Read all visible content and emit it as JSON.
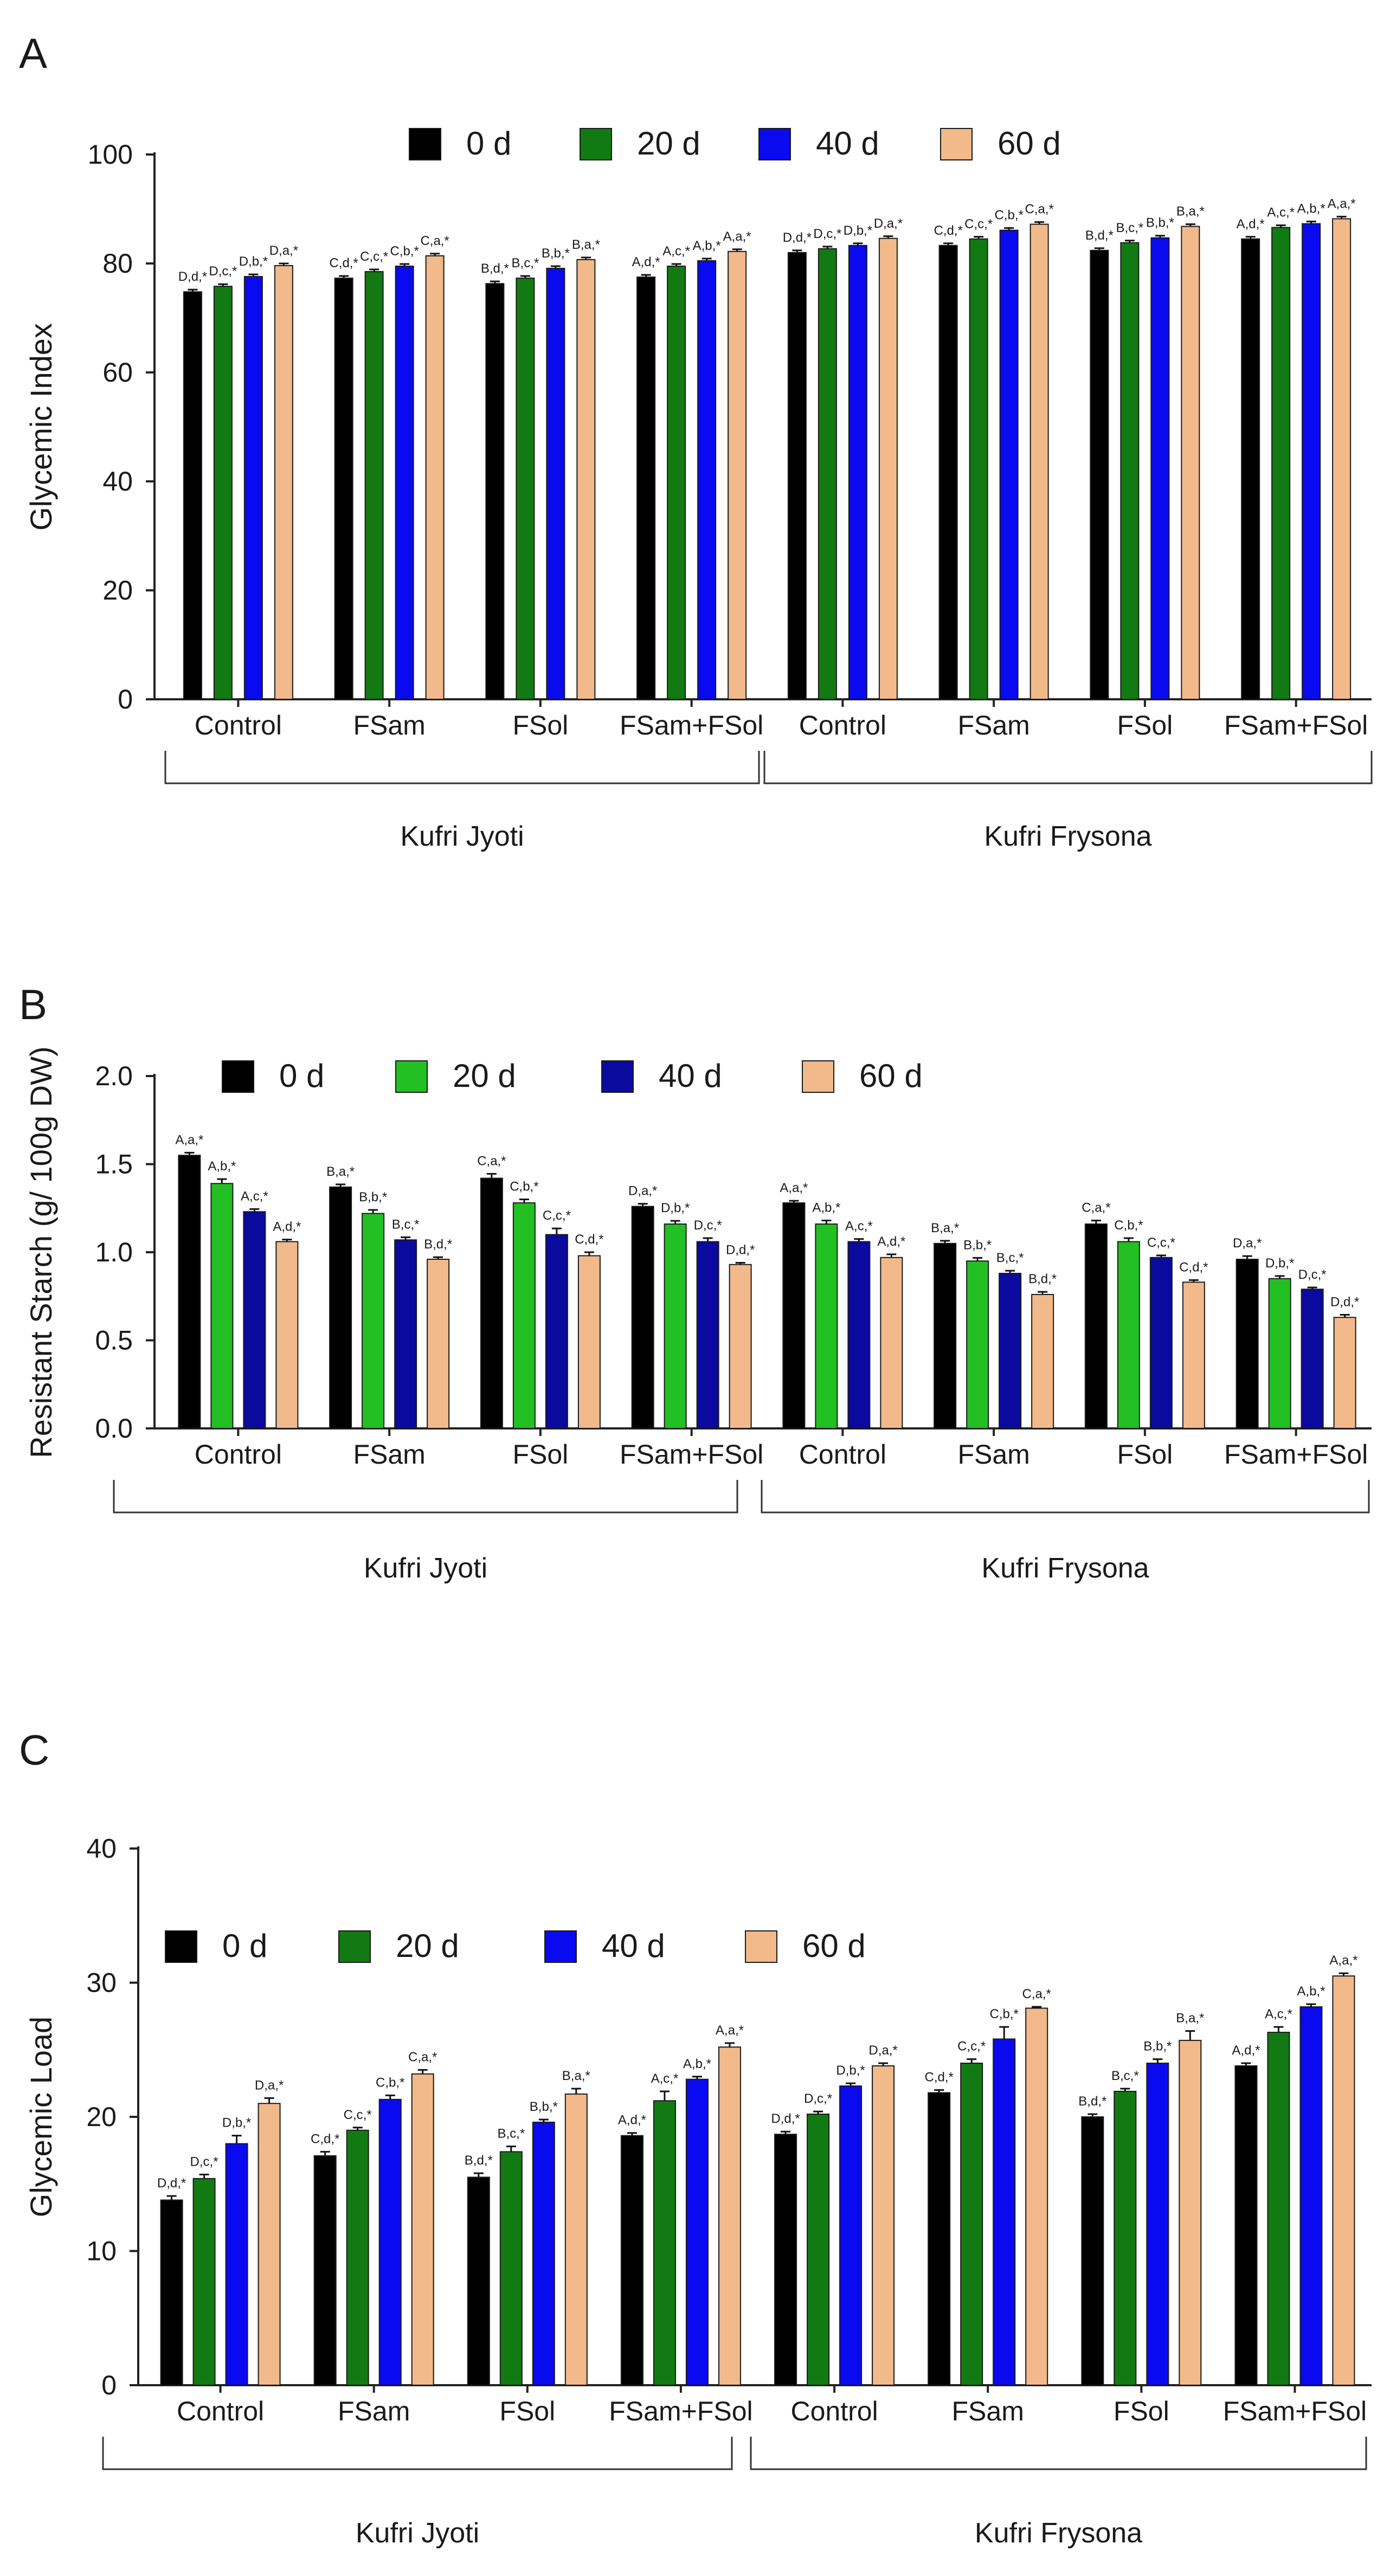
{
  "chart_data": [
    {
      "type": "bar",
      "panel_label": "A",
      "ylabel": "Glycemic Index",
      "xlabel": "",
      "ylim": [
        0,
        100
      ],
      "yticks": [
        0,
        20,
        40,
        60,
        80,
        100
      ],
      "categories": [
        "Control",
        "FSam",
        "FSol",
        "FSam+FSol",
        "Control",
        "FSam",
        "FSol",
        "FSam+FSol"
      ],
      "groups": [
        "Kufri Jyoti",
        "Kufri Frysona"
      ],
      "legend_position": "top",
      "series": [
        {
          "name": "0 d",
          "color": "#000000",
          "values": [
            74.8,
            77.3,
            76.3,
            77.5,
            82.0,
            83.3,
            82.4,
            84.5
          ],
          "errors": [
            0.4,
            0.4,
            0.4,
            0.4,
            0.4,
            0.4,
            0.4,
            0.4
          ],
          "labels": [
            "D,d,*",
            "C,d,*",
            "B,d,*",
            "A,d,*",
            "D,d,*",
            "C,d,*",
            "B,d,*",
            "A,d,*"
          ]
        },
        {
          "name": "20 d",
          "color": "#127a12",
          "values": [
            75.8,
            78.5,
            77.3,
            79.5,
            82.7,
            84.5,
            83.8,
            86.6
          ],
          "errors": [
            0.4,
            0.4,
            0.4,
            0.4,
            0.4,
            0.4,
            0.4,
            0.4
          ],
          "labels": [
            "D,c,*",
            "C,c,*",
            "B,c,*",
            "A,c,*",
            "D,c,*",
            "C,c,*",
            "B,c,*",
            "A,c,*"
          ]
        },
        {
          "name": "40 d",
          "color": "#0a0af0",
          "values": [
            77.6,
            79.5,
            79.1,
            80.5,
            83.3,
            86.1,
            84.7,
            87.3
          ],
          "errors": [
            0.4,
            0.4,
            0.4,
            0.4,
            0.4,
            0.4,
            0.4,
            0.4
          ],
          "labels": [
            "D,b,*",
            "C,b,*",
            "B,b,*",
            "A,b,*",
            "D,b,*",
            "C,b,*",
            "B,b,*",
            "A,b,*"
          ]
        },
        {
          "name": "60 d",
          "color": "#f2b98a",
          "values": [
            79.6,
            81.4,
            80.7,
            82.2,
            84.6,
            87.2,
            86.8,
            88.2
          ],
          "errors": [
            0.4,
            0.4,
            0.4,
            0.4,
            0.4,
            0.4,
            0.4,
            0.4
          ],
          "labels": [
            "D,a,*",
            "C,a,*",
            "B,a,*",
            "A,a,*",
            "D,a,*",
            "C,a,*",
            "B,a,*",
            "A,a,*"
          ]
        }
      ]
    },
    {
      "type": "bar",
      "panel_label": "B",
      "ylabel": "Resistant Starch (g/ 100g  DW)",
      "xlabel": "",
      "ylim": [
        0,
        2.0
      ],
      "yticks": [
        "0.0",
        "0.5",
        "1.0",
        "1.5",
        "2.0"
      ],
      "categories": [
        "Control",
        "FSam",
        "FSol",
        "FSam+FSol",
        "Control",
        "FSam",
        "FSol",
        "FSam+FSol"
      ],
      "groups": [
        "Kufri Jyoti",
        "Kufri Frysona"
      ],
      "legend_position": "top",
      "series": [
        {
          "name": "0 d",
          "color": "#000000",
          "values": [
            1.55,
            1.37,
            1.42,
            1.26,
            1.28,
            1.05,
            1.16,
            0.96
          ],
          "errors": [
            0.015,
            0.015,
            0.025,
            0.015,
            0.012,
            0.015,
            0.02,
            0.018
          ],
          "labels": [
            "A,a,*",
            "B,a,*",
            "C,a,*",
            "D,a,*",
            "A,a,*",
            "B,a,*",
            "C,a,*",
            "D,a,*"
          ]
        },
        {
          "name": "20 d",
          "color": "#22c022",
          "values": [
            1.39,
            1.22,
            1.28,
            1.16,
            1.16,
            0.95,
            1.06,
            0.85
          ],
          "errors": [
            0.025,
            0.02,
            0.02,
            0.018,
            0.02,
            0.018,
            0.02,
            0.015
          ],
          "labels": [
            "A,b,*",
            "B,b,*",
            "C,b,*",
            "D,b,*",
            "A,b,*",
            "B,b,*",
            "C,b,*",
            "D,b,*"
          ]
        },
        {
          "name": "40 d",
          "color": "#0a0a9e",
          "values": [
            1.23,
            1.07,
            1.1,
            1.06,
            1.06,
            0.88,
            0.97,
            0.79
          ],
          "errors": [
            0.015,
            0.015,
            0.035,
            0.02,
            0.015,
            0.015,
            0.012,
            0.01
          ],
          "labels": [
            "A,c,*",
            "B,c,*",
            "C,c,*",
            "D,c,*",
            "A,c,*",
            "B,c,*",
            "C,c,*",
            "D,c,*"
          ]
        },
        {
          "name": "60 d",
          "color": "#f2b98a",
          "values": [
            1.06,
            0.96,
            0.98,
            0.93,
            0.97,
            0.76,
            0.83,
            0.63
          ],
          "errors": [
            0.012,
            0.012,
            0.02,
            0.01,
            0.018,
            0.015,
            0.012,
            0.015
          ],
          "labels": [
            "A,d,*",
            "B,d,*",
            "C,d,*",
            "D,d,*",
            "A,d,*",
            "B,d,*",
            "C,d,*",
            "D,d,*"
          ]
        }
      ]
    },
    {
      "type": "bar",
      "panel_label": "C",
      "ylabel": "Glycemic Load",
      "xlabel": "",
      "ylim": [
        0,
        40
      ],
      "yticks": [
        0,
        10,
        20,
        30,
        40
      ],
      "categories": [
        "Control",
        "FSam",
        "FSol",
        "FSam+FSol",
        "Control",
        "FSam",
        "FSol",
        "FSam+FSol"
      ],
      "groups": [
        "Kufri Jyoti",
        "Kufri Frysona"
      ],
      "legend_position": "top",
      "series": [
        {
          "name": "0 d",
          "color": "#000000",
          "values": [
            13.8,
            17.1,
            15.5,
            18.6,
            18.7,
            21.8,
            20.0,
            23.8
          ],
          "errors": [
            0.3,
            0.3,
            0.3,
            0.2,
            0.2,
            0.2,
            0.2,
            0.2
          ],
          "labels": [
            "D,d,*",
            "C,d,*",
            "B,d,*",
            "A,d,*",
            "D,d,*",
            "C,d,*",
            "B,d,*",
            "A,d,*"
          ]
        },
        {
          "name": "20 d",
          "color": "#127a12",
          "values": [
            15.4,
            19.0,
            17.4,
            21.2,
            20.2,
            24.0,
            21.9,
            26.3
          ],
          "errors": [
            0.3,
            0.2,
            0.4,
            0.7,
            0.2,
            0.3,
            0.2,
            0.4
          ],
          "labels": [
            "D,c,*",
            "C,c,*",
            "B,c,*",
            "A,c,*",
            "D,c,*",
            "C,c,*",
            "B,c,*",
            "A,c,*"
          ]
        },
        {
          "name": "40 d",
          "color": "#0a0af0",
          "values": [
            18.0,
            21.3,
            19.6,
            22.8,
            22.3,
            25.8,
            24.0,
            28.2
          ],
          "errors": [
            0.6,
            0.3,
            0.2,
            0.2,
            0.2,
            0.9,
            0.3,
            0.2
          ],
          "labels": [
            "D,b,*",
            "C,b,*",
            "B,b,*",
            "A,b,*",
            "D,b,*",
            "C,b,*",
            "B,b,*",
            "A,b,*"
          ]
        },
        {
          "name": "60 d",
          "color": "#f2b98a",
          "values": [
            21.0,
            23.2,
            21.7,
            25.2,
            23.8,
            28.1,
            25.7,
            30.5
          ],
          "errors": [
            0.4,
            0.3,
            0.4,
            0.3,
            0.2,
            0.1,
            0.7,
            0.2
          ],
          "labels": [
            "D,a,*",
            "C,a,*",
            "B,a,*",
            "A,a,*",
            "D,a,*",
            "C,a,*",
            "B,a,*",
            "A,a,*"
          ]
        }
      ]
    }
  ]
}
